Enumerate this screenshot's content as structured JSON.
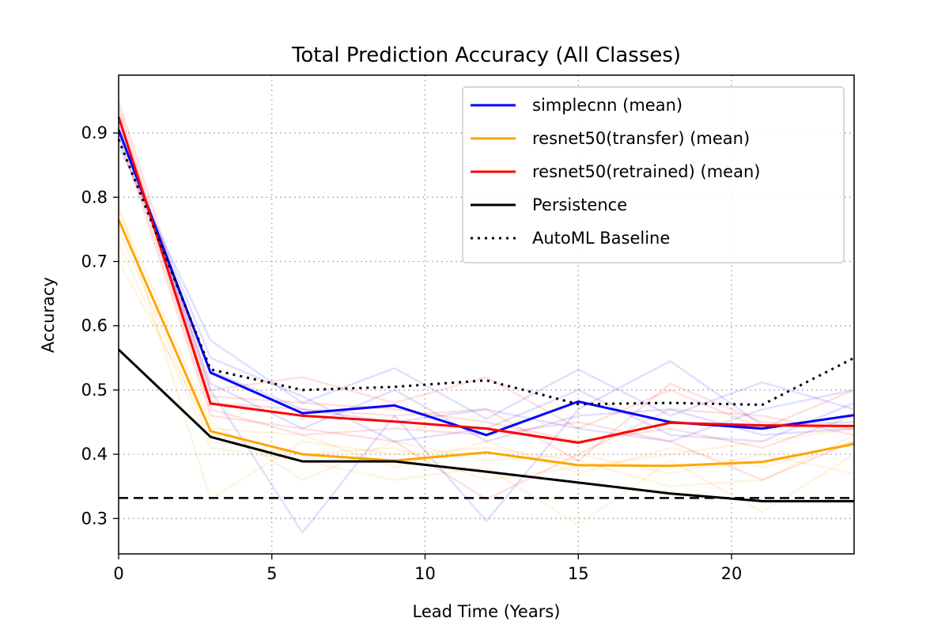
{
  "chart_data": {
    "type": "line",
    "title": "Total Prediction Accuracy (All Classes)",
    "xlabel": "Lead Time (Years)",
    "ylabel": "Accuracy",
    "xlim": [
      0,
      24
    ],
    "ylim": [
      0.245,
      0.99
    ],
    "xticks": [
      0,
      5,
      10,
      15,
      20
    ],
    "yticks": [
      0.3,
      0.4,
      0.5,
      0.6,
      0.7,
      0.8,
      0.9
    ],
    "grid": true,
    "grid_style": "dotted",
    "legend_position": "upper-right",
    "x": [
      0,
      3,
      6,
      9,
      12,
      15,
      18,
      21,
      24
    ],
    "series": [
      {
        "name": "simplecnn (mean)",
        "color": "#0000ff",
        "style": "solid",
        "values": [
          0.905,
          0.527,
          0.464,
          0.476,
          0.43,
          0.482,
          0.45,
          0.44,
          0.461
        ]
      },
      {
        "name": "resnet50(transfer) (mean)",
        "color": "#ffa500",
        "style": "solid",
        "values": [
          0.765,
          0.436,
          0.4,
          0.39,
          0.403,
          0.383,
          0.382,
          0.388,
          0.416
        ]
      },
      {
        "name": "resnet50(retrained) (mean)",
        "color": "#ff0000",
        "style": "solid",
        "values": [
          0.925,
          0.479,
          0.46,
          0.451,
          0.44,
          0.418,
          0.449,
          0.445,
          0.444
        ]
      },
      {
        "name": "Persistence",
        "color": "#000000",
        "style": "solid",
        "values": [
          0.563,
          0.427,
          0.389,
          0.389,
          0.373,
          0.356,
          0.339,
          0.327,
          0.327
        ]
      },
      {
        "name": "AutoML Baseline",
        "color": "#000000",
        "style": "dotted",
        "values": [
          0.89,
          0.532,
          0.5,
          0.505,
          0.515,
          0.478,
          0.48,
          0.477,
          0.55
        ]
      }
    ],
    "reference_line": {
      "y": 0.332,
      "style": "dashed",
      "color": "#000000"
    },
    "member_runs": [
      {
        "color": "#0000ff",
        "values": [
          0.88,
          0.577,
          0.48,
          0.534,
          0.455,
          0.532,
          0.46,
          0.512,
          0.47
        ]
      },
      {
        "color": "#0000ff",
        "values": [
          0.92,
          0.5,
          0.278,
          0.46,
          0.296,
          0.47,
          0.545,
          0.445,
          0.45
        ]
      },
      {
        "color": "#0000ff",
        "values": [
          0.9,
          0.55,
          0.49,
          0.42,
          0.44,
          0.5,
          0.43,
          0.42,
          0.48
        ]
      },
      {
        "color": "#0000ff",
        "values": [
          0.91,
          0.51,
          0.44,
          0.5,
          0.42,
          0.46,
          0.47,
          0.43,
          0.44
        ]
      },
      {
        "color": "#0000ff",
        "values": [
          0.89,
          0.53,
          0.47,
          0.45,
          0.47,
          0.44,
          0.42,
          0.47,
          0.5
        ]
      },
      {
        "color": "#ffa500",
        "values": [
          0.73,
          0.41,
          0.39,
          0.36,
          0.38,
          0.29,
          0.39,
          0.31,
          0.4
        ]
      },
      {
        "color": "#ffa500",
        "values": [
          0.79,
          0.33,
          0.42,
          0.4,
          0.41,
          0.39,
          0.35,
          0.36,
          0.43
        ]
      },
      {
        "color": "#ffa500",
        "values": [
          0.78,
          0.45,
          0.36,
          0.42,
          0.39,
          0.4,
          0.37,
          0.4,
          0.37
        ]
      },
      {
        "color": "#ffa500",
        "values": [
          0.7,
          0.44,
          0.43,
          0.38,
          0.42,
          0.37,
          0.41,
          0.38,
          0.42
        ]
      },
      {
        "color": "#ffa500",
        "values": [
          0.75,
          0.42,
          0.4,
          0.41,
          0.36,
          0.38,
          0.4,
          0.42,
          0.44
        ]
      },
      {
        "color": "#ff0000",
        "values": [
          0.95,
          0.5,
          0.52,
          0.48,
          0.52,
          0.44,
          0.5,
          0.44,
          0.5
        ]
      },
      {
        "color": "#ff0000",
        "values": [
          0.9,
          0.46,
          0.44,
          0.42,
          0.33,
          0.4,
          0.47,
          0.46,
          0.43
        ]
      },
      {
        "color": "#ff0000",
        "values": [
          0.93,
          0.49,
          0.48,
          0.47,
          0.45,
          0.42,
          0.44,
          0.41,
          0.46
        ]
      },
      {
        "color": "#ff0000",
        "values": [
          0.91,
          0.47,
          0.43,
          0.44,
          0.43,
          0.45,
          0.42,
          0.36,
          0.42
        ]
      },
      {
        "color": "#ff0000",
        "values": [
          0.94,
          0.48,
          0.47,
          0.46,
          0.47,
          0.39,
          0.51,
          0.45,
          0.44
        ]
      }
    ]
  }
}
